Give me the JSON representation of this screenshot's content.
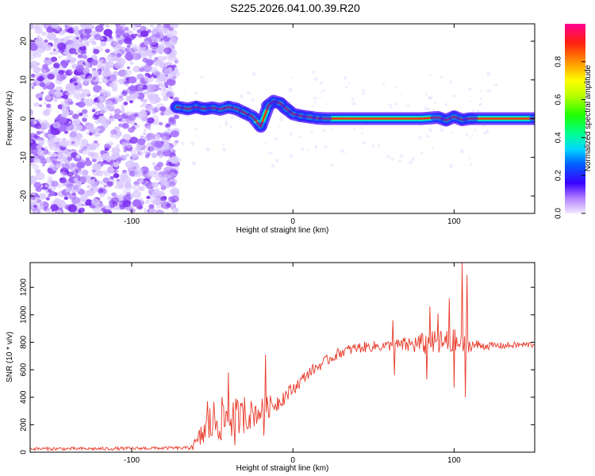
{
  "figure": {
    "title": "S225.2026.041.00.39.R20"
  },
  "colors": {
    "snr_line": "#e83a2a",
    "axes": "#000000",
    "noise_light": "#d9c7ff",
    "noise_dark": "#7a2bf0"
  },
  "chart_data": [
    {
      "type": "heatmap",
      "title": "",
      "xlabel": "Height of straight line (km)",
      "ylabel": "Frequency (Hz)",
      "xlim": [
        -163,
        150
      ],
      "ylim": [
        -24.5,
        24.5
      ],
      "xticks": [
        -100,
        0,
        100
      ],
      "xtick_labels": [
        "-100",
        "0",
        "100"
      ],
      "yticks": [
        -20,
        -10,
        0,
        10,
        20
      ],
      "ytick_labels": [
        "-20",
        "-10",
        "0",
        "10",
        "20"
      ],
      "noise_region_x": [
        -163,
        -72
      ],
      "ridge_x": [
        -72,
        -65,
        -60,
        -55,
        -50,
        -45,
        -40,
        -35,
        -30,
        -25,
        -20,
        -15,
        -12,
        -8,
        -4,
        0,
        5,
        10,
        15,
        20,
        40,
        60,
        80,
        90,
        95,
        100,
        105,
        110,
        150
      ],
      "ridge_freq": [
        3,
        2.5,
        3,
        2.5,
        2.8,
        2.4,
        3,
        2.5,
        1.5,
        0.5,
        -2,
        3.5,
        4.5,
        4,
        2.5,
        1.2,
        0.7,
        0.4,
        0.1,
        0,
        0,
        0,
        0,
        0.3,
        -0.4,
        0.5,
        -0.3,
        0,
        0
      ],
      "colorbar": {
        "label": "Normalized spectral amplitude",
        "range": [
          0,
          1
        ],
        "ticks": [
          0.0,
          0.2,
          0.4,
          0.6,
          0.8
        ],
        "tick_labels": [
          "0.0",
          "0.2",
          "0.4",
          "0.6",
          "0.8"
        ]
      }
    },
    {
      "type": "line",
      "title": "",
      "xlabel": "Height of straight line (km)",
      "ylabel": "SNR (10 * v/v)",
      "xlim": [
        -163,
        150
      ],
      "ylim": [
        0,
        1380
      ],
      "xticks": [
        -100,
        0,
        100
      ],
      "xtick_labels": [
        "-100",
        "0",
        "100"
      ],
      "yticks": [
        0,
        200,
        400,
        600,
        800,
        1000,
        1200
      ],
      "ytick_labels": [
        "0",
        "200",
        "400",
        "600",
        "800",
        "1000",
        "1200"
      ],
      "series": [
        {
          "name": "SNR",
          "x": [
            -163,
            -120,
            -80,
            -66,
            -60,
            -55,
            -50,
            -40,
            -30,
            -20,
            -10,
            0,
            10,
            20,
            30,
            40,
            50,
            60,
            70,
            80,
            90,
            100,
            110,
            120,
            130,
            140,
            150
          ],
          "y": [
            25,
            25,
            30,
            30,
            60,
            150,
            220,
            250,
            260,
            300,
            360,
            460,
            580,
            660,
            730,
            760,
            770,
            775,
            780,
            790,
            790,
            790,
            780,
            775,
            775,
            780,
            785
          ],
          "amp": [
            12,
            12,
            12,
            12,
            50,
            120,
            170,
            160,
            120,
            90,
            70,
            50,
            40,
            40,
            40,
            40,
            40,
            40,
            60,
            80,
            100,
            110,
            50,
            30,
            25,
            25,
            25
          ]
        }
      ],
      "spikes": [
        {
          "x": 105,
          "y": 1380
        },
        {
          "x": 108,
          "y": 1290
        },
        {
          "x": 107,
          "y": 400
        },
        {
          "x": 100,
          "y": 470
        },
        {
          "x": 97,
          "y": 1120
        },
        {
          "x": 85,
          "y": 1060
        },
        {
          "x": 83,
          "y": 530
        },
        {
          "x": 90,
          "y": 1010
        },
        {
          "x": 62,
          "y": 960
        },
        {
          "x": 63,
          "y": 560
        },
        {
          "x": -40,
          "y": 580
        },
        {
          "x": -36,
          "y": 50
        },
        {
          "x": -17,
          "y": 710
        },
        {
          "x": -18,
          "y": 120
        },
        {
          "x": -53,
          "y": 370
        },
        {
          "x": -30,
          "y": 400
        }
      ]
    }
  ]
}
